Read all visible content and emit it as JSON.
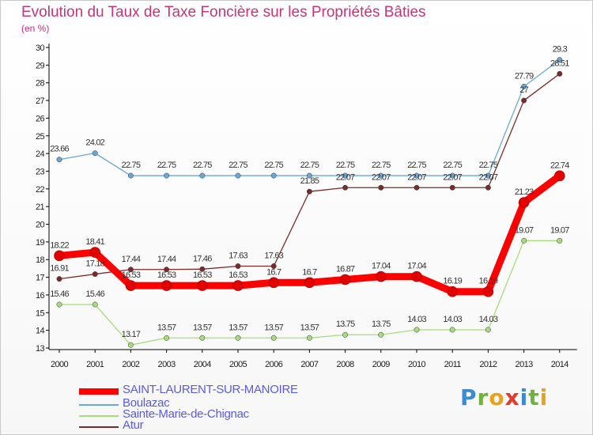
{
  "chart_data": {
    "type": "line",
    "title": "Evolution du Taux de Taxe Foncière sur les Propriétés Bâties",
    "xlabel": "",
    "ylabel": "(en %)",
    "ylim": [
      13,
      30
    ],
    "yticks": [
      13,
      14,
      15,
      16,
      17,
      18,
      19,
      20,
      21,
      22,
      23,
      24,
      25,
      26,
      27,
      28,
      29,
      30
    ],
    "categories": [
      "2000",
      "2001",
      "2002",
      "2003",
      "2004",
      "2005",
      "2006",
      "2007",
      "2008",
      "2009",
      "2010",
      "2011",
      "2012",
      "2013",
      "2014"
    ],
    "series": [
      {
        "name": "SAINT-LAURENT-SUR-MANOIRE",
        "color": "#ff0000",
        "values": [
          18.22,
          18.41,
          16.53,
          16.53,
          16.53,
          16.53,
          16.7,
          16.7,
          16.87,
          17.04,
          17.04,
          16.19,
          16.19,
          21.23,
          22.74
        ],
        "labels": [
          "18.22",
          "18.41",
          "16.53",
          "16.53",
          "16.53",
          "16.53",
          "16.7",
          "16.7",
          "16.87",
          "17.04",
          "17.04",
          "16.19",
          "16.19",
          "21.23",
          "22.74"
        ]
      },
      {
        "name": "Boulazac",
        "color": "#6aa7d8",
        "values": [
          23.66,
          24.02,
          22.75,
          22.75,
          22.75,
          22.75,
          22.75,
          22.75,
          22.75,
          22.75,
          22.75,
          22.75,
          22.75,
          27.79,
          29.3
        ],
        "labels": [
          "23.66",
          "24.02",
          "22.75",
          "22.75",
          "22.75",
          "22.75",
          "22.75",
          "22.75",
          "22.75",
          "22.75",
          "22.75",
          "22.75",
          "22.75",
          "27.79",
          "29.3"
        ]
      },
      {
        "name": "Sainte-Marie-de-Chignac",
        "color": "#a7dc7b",
        "values": [
          15.46,
          15.46,
          13.17,
          13.57,
          13.57,
          13.57,
          13.57,
          13.57,
          13.75,
          13.75,
          14.03,
          14.03,
          14.03,
          19.07,
          19.07
        ],
        "labels": [
          "15.46",
          "15.46",
          "13.17",
          "13.57",
          "13.57",
          "13.57",
          "13.57",
          "13.57",
          "13.75",
          "13.75",
          "14.03",
          "14.03",
          "14.03",
          "19.07",
          "19.07"
        ]
      },
      {
        "name": "Atur",
        "color": "#7b2a2a",
        "values": [
          16.91,
          17.18,
          17.44,
          17.44,
          17.46,
          17.63,
          17.63,
          21.85,
          22.07,
          22.07,
          22.07,
          22.07,
          22.07,
          27,
          28.51
        ],
        "labels": [
          "16.91",
          "17.18",
          "17.44",
          "17.44",
          "17.46",
          "17.63",
          "17.63",
          "21.85",
          "22.07",
          "22.07",
          "22.07",
          "22.07",
          "22.07",
          "27",
          "28.51"
        ]
      }
    ],
    "legend": "bottom-left",
    "grid": false
  }
}
